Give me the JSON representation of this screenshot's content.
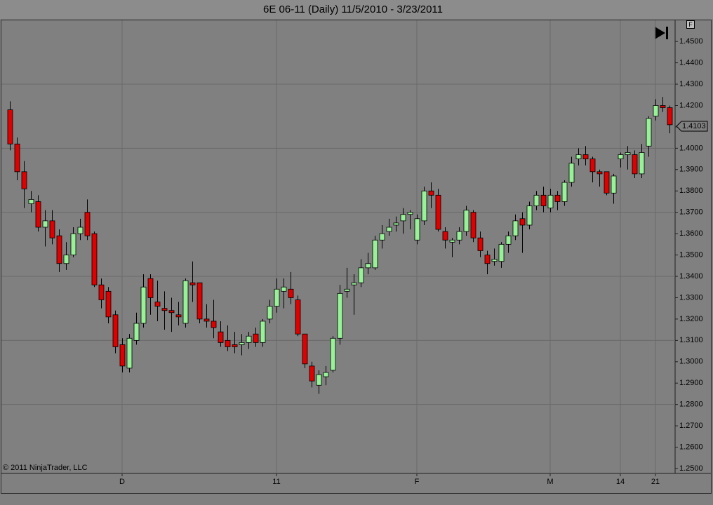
{
  "chart_data": {
    "type": "candlestick",
    "title": "6E 06-11 (Daily)  11/5/2010 - 3/23/2011",
    "copyright": "© 2011 NinjaTrader, LLC",
    "panel_button": "F",
    "categories": [
      null,
      null,
      null,
      null,
      null,
      null,
      null,
      null,
      null,
      null,
      null,
      null,
      null,
      null,
      null,
      null,
      "D",
      null,
      null,
      null,
      null,
      null,
      null,
      null,
      null,
      null,
      null,
      null,
      null,
      null,
      null,
      null,
      null,
      null,
      null,
      null,
      null,
      null,
      "11",
      null,
      null,
      null,
      null,
      null,
      null,
      null,
      null,
      null,
      null,
      null,
      null,
      null,
      null,
      null,
      null,
      null,
      null,
      null,
      "F",
      null,
      null,
      null,
      null,
      null,
      null,
      null,
      null,
      null,
      null,
      null,
      null,
      null,
      null,
      null,
      null,
      null,
      null,
      "M",
      null,
      null,
      null,
      null,
      null,
      null,
      null,
      null,
      null,
      "14",
      null,
      null,
      null,
      null,
      "21",
      null,
      null
    ],
    "open": [
      1.418,
      1.402,
      1.389,
      1.374,
      1.375,
      1.363,
      1.366,
      1.359,
      1.346,
      1.35,
      1.36,
      1.37,
      1.36,
      1.336,
      1.333,
      1.322,
      1.308,
      1.297,
      1.31,
      1.318,
      1.339,
      1.328,
      1.325,
      1.324,
      1.322,
      1.318,
      1.337,
      1.337,
      1.32,
      1.319,
      1.314,
      1.31,
      1.308,
      1.308,
      1.309,
      1.313,
      1.309,
      1.32,
      1.326,
      1.333,
      1.334,
      1.329,
      1.313,
      1.298,
      1.289,
      1.293,
      1.296,
      1.311,
      1.333,
      1.336,
      1.337,
      1.344,
      1.344,
      1.357,
      1.361,
      1.364,
      1.366,
      1.369,
      1.357,
      1.366,
      1.38,
      1.378,
      1.361,
      1.356,
      1.357,
      1.361,
      1.37,
      1.358,
      1.35,
      1.347,
      1.347,
      1.355,
      1.359,
      1.367,
      1.364,
      1.373,
      1.378,
      1.372,
      1.378,
      1.375,
      1.384,
      1.395,
      1.397,
      1.395,
      1.389,
      1.389,
      1.379,
      1.395,
      1.397,
      1.397,
      1.388,
      1.401,
      1.415,
      1.42,
      1.419
    ],
    "high": [
      1.422,
      1.405,
      1.394,
      1.38,
      1.378,
      1.371,
      1.371,
      1.362,
      1.356,
      1.363,
      1.367,
      1.376,
      1.361,
      1.339,
      1.335,
      1.324,
      1.311,
      1.313,
      1.323,
      1.341,
      1.341,
      1.338,
      1.333,
      1.33,
      1.328,
      1.339,
      1.347,
      1.337,
      1.327,
      1.329,
      1.319,
      1.317,
      1.314,
      1.313,
      1.314,
      1.316,
      1.32,
      1.329,
      1.339,
      1.339,
      1.342,
      1.331,
      1.313,
      1.3,
      1.296,
      1.298,
      1.312,
      1.336,
      1.344,
      1.341,
      1.348,
      1.351,
      1.359,
      1.364,
      1.367,
      1.368,
      1.372,
      1.371,
      1.369,
      1.382,
      1.384,
      1.381,
      1.363,
      1.358,
      1.363,
      1.373,
      1.371,
      1.361,
      1.352,
      1.353,
      1.356,
      1.361,
      1.369,
      1.37,
      1.375,
      1.38,
      1.382,
      1.381,
      1.38,
      1.385,
      1.396,
      1.4,
      1.401,
      1.396,
      1.39,
      1.389,
      1.388,
      1.398,
      1.401,
      1.399,
      1.402,
      1.415,
      1.423,
      1.424,
      1.42
    ],
    "low": [
      1.399,
      1.385,
      1.372,
      1.37,
      1.361,
      1.354,
      1.355,
      1.342,
      1.343,
      1.349,
      1.357,
      1.357,
      1.335,
      1.325,
      1.318,
      1.304,
      1.295,
      1.295,
      1.308,
      1.316,
      1.322,
      1.319,
      1.315,
      1.314,
      1.317,
      1.316,
      1.328,
      1.318,
      1.316,
      1.311,
      1.307,
      1.305,
      1.304,
      1.303,
      1.306,
      1.307,
      1.307,
      1.318,
      1.323,
      1.325,
      1.327,
      1.312,
      1.297,
      1.288,
      1.285,
      1.289,
      1.295,
      1.308,
      1.33,
      1.322,
      1.335,
      1.341,
      1.343,
      1.353,
      1.359,
      1.361,
      1.36,
      1.362,
      1.355,
      1.364,
      1.372,
      1.361,
      1.353,
      1.349,
      1.355,
      1.359,
      1.356,
      1.349,
      1.341,
      1.345,
      1.344,
      1.351,
      1.357,
      1.351,
      1.362,
      1.371,
      1.37,
      1.37,
      1.371,
      1.373,
      1.382,
      1.392,
      1.392,
      1.384,
      1.382,
      1.378,
      1.374,
      1.391,
      1.39,
      1.386,
      1.386,
      1.396,
      1.413,
      1.417,
      1.407
    ],
    "close": [
      1.402,
      1.389,
      1.381,
      1.376,
      1.363,
      1.366,
      1.358,
      1.346,
      1.35,
      1.36,
      1.363,
      1.359,
      1.336,
      1.329,
      1.321,
      1.307,
      1.298,
      1.311,
      1.318,
      1.335,
      1.33,
      1.326,
      1.324,
      1.323,
      1.321,
      1.338,
      1.336,
      1.32,
      1.319,
      1.316,
      1.309,
      1.307,
      1.307,
      1.309,
      1.312,
      1.309,
      1.319,
      1.326,
      1.334,
      1.335,
      1.33,
      1.313,
      1.299,
      1.291,
      1.294,
      1.295,
      1.311,
      1.332,
      1.334,
      1.337,
      1.344,
      1.346,
      1.357,
      1.36,
      1.363,
      1.365,
      1.369,
      1.37,
      1.367,
      1.38,
      1.378,
      1.362,
      1.357,
      1.357,
      1.361,
      1.371,
      1.358,
      1.352,
      1.346,
      1.348,
      1.355,
      1.359,
      1.366,
      1.364,
      1.373,
      1.378,
      1.373,
      1.378,
      1.375,
      1.384,
      1.393,
      1.397,
      1.395,
      1.389,
      1.388,
      1.379,
      1.387,
      1.397,
      1.398,
      1.388,
      1.398,
      1.414,
      1.42,
      1.419,
      1.411
    ],
    "up_color": "#98f098",
    "down_color": "#e00000",
    "last_price": 1.4103,
    "ylim": [
      1.2477,
      1.4599
    ],
    "yticks": [
      {
        "value": 1.25,
        "label": "1.2500"
      },
      {
        "value": 1.26,
        "label": "1.2600"
      },
      {
        "value": 1.27,
        "label": "1.2700"
      },
      {
        "value": 1.28,
        "label": "1.2800"
      },
      {
        "value": 1.29,
        "label": "1.2900"
      },
      {
        "value": 1.3,
        "label": "1.3000"
      },
      {
        "value": 1.31,
        "label": "1.3100"
      },
      {
        "value": 1.32,
        "label": "1.3200"
      },
      {
        "value": 1.33,
        "label": "1.3300"
      },
      {
        "value": 1.34,
        "label": "1.3400"
      },
      {
        "value": 1.35,
        "label": "1.3500"
      },
      {
        "value": 1.36,
        "label": "1.3600"
      },
      {
        "value": 1.37,
        "label": "1.3700"
      },
      {
        "value": 1.38,
        "label": "1.3800"
      },
      {
        "value": 1.39,
        "label": "1.3900"
      },
      {
        "value": 1.4,
        "label": "1.4000"
      },
      {
        "value": 1.41,
        "label": "1.4100"
      },
      {
        "value": 1.42,
        "label": "1.4200"
      },
      {
        "value": 1.43,
        "label": "1.4300"
      },
      {
        "value": 1.44,
        "label": "1.4400"
      },
      {
        "value": 1.45,
        "label": "1.4500"
      }
    ],
    "ygrid": [
      1.28,
      1.31,
      1.34,
      1.37,
      1.4,
      1.43
    ],
    "grid": true
  }
}
